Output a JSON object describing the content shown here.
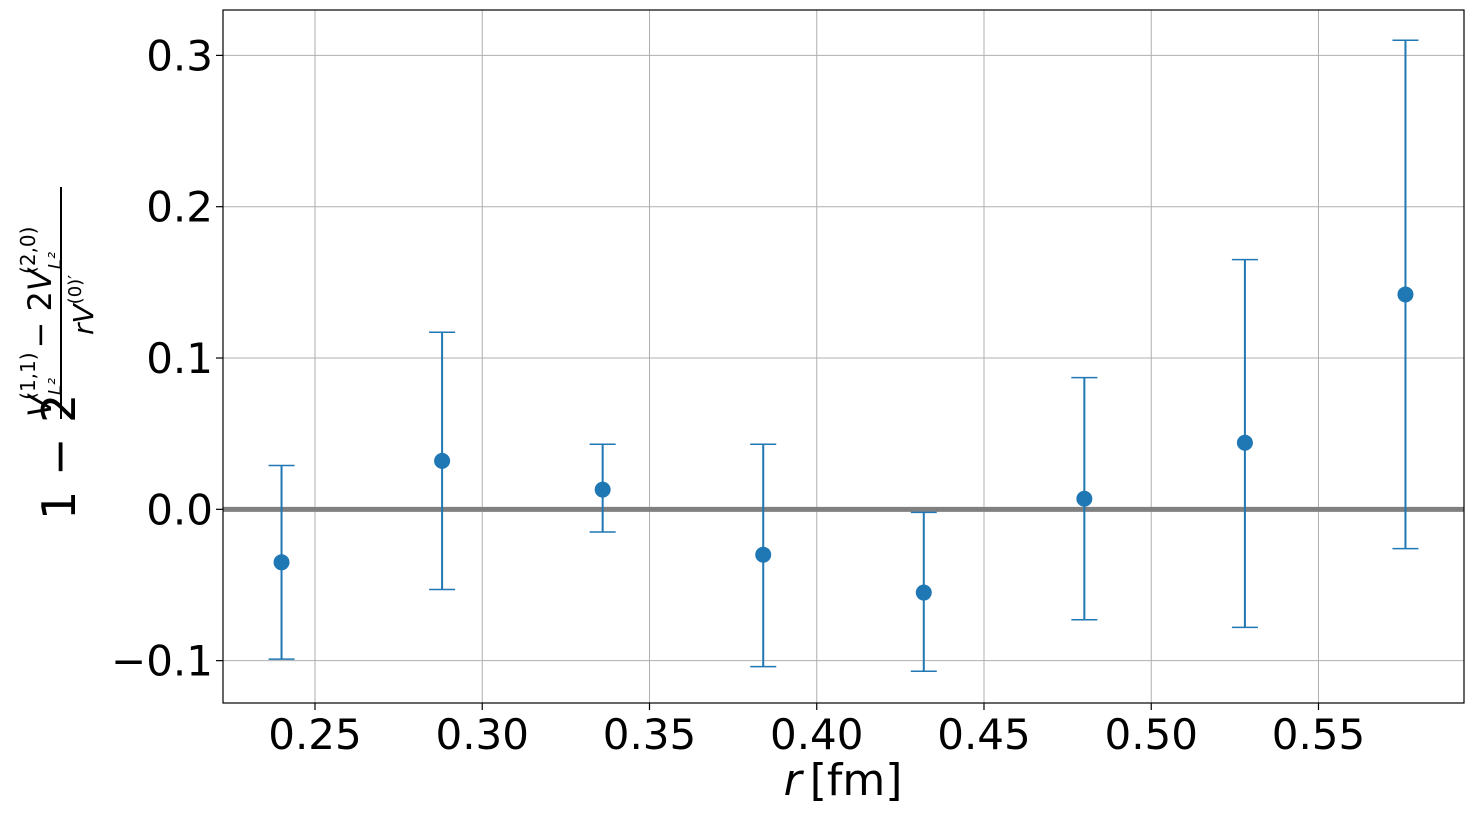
{
  "chart_data": {
    "type": "scatter",
    "title": "",
    "xlabel": {
      "variable": "r",
      "unit": "[fm]"
    },
    "ylabel": {
      "prefix": "1 − 2",
      "numerator_a": "V",
      "numerator_a_sup": "(1,1)",
      "numerator_a_sub": "L²",
      "numerator_b": "V",
      "numerator_b_coef": "− 2",
      "numerator_b_sup": "(2,0)",
      "numerator_b_sub": "L²",
      "denominator": "rV",
      "denominator_sup": "(0)′"
    },
    "xlim": [
      0.2225,
      0.5935
    ],
    "ylim": [
      -0.128,
      0.33
    ],
    "xticks": [
      0.25,
      0.3,
      0.35,
      0.4,
      0.45,
      0.5,
      0.55
    ],
    "xtick_labels": [
      "0.25",
      "0.30",
      "0.35",
      "0.40",
      "0.45",
      "0.50",
      "0.55"
    ],
    "yticks": [
      -0.1,
      0.0,
      0.1,
      0.2,
      0.3
    ],
    "ytick_labels": [
      "−0.1",
      "0.0",
      "0.1",
      "0.2",
      "0.3"
    ],
    "grid": true,
    "reference_line": {
      "y": 0.0,
      "color": "#808080"
    },
    "series": [
      {
        "color": "#1f77b4",
        "x": [
          0.24,
          0.288,
          0.336,
          0.384,
          0.432,
          0.48,
          0.528,
          0.576
        ],
        "y": [
          -0.035,
          0.032,
          0.013,
          -0.03,
          -0.055,
          0.007,
          0.044,
          0.142
        ],
        "y_low": [
          -0.099,
          -0.053,
          -0.015,
          -0.104,
          -0.107,
          -0.073,
          -0.078,
          -0.026
        ],
        "y_high": [
          0.029,
          0.117,
          0.043,
          0.043,
          -0.002,
          0.087,
          0.165,
          0.31
        ]
      }
    ]
  }
}
